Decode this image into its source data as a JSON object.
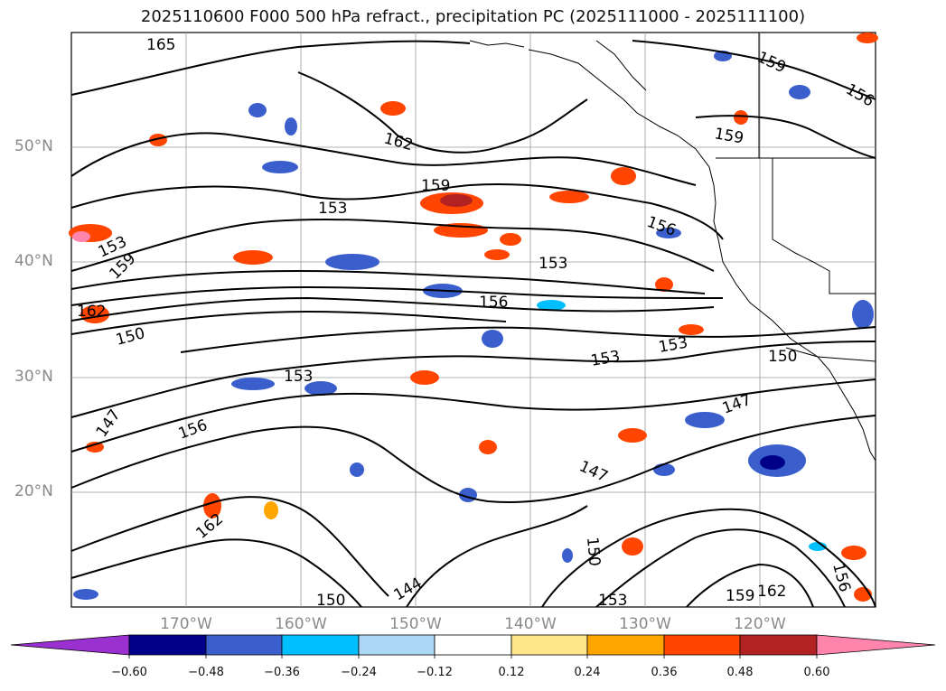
{
  "title": "2025110600 F000 500 hPa refract., precipitation PC (2025111000 - 2025111100)",
  "latitude_labels": [
    "50°N",
    "40°N",
    "30°N",
    "20°N"
  ],
  "longitude_labels": [
    "170°W",
    "160°W",
    "150°W",
    "140°W",
    "130°W",
    "120°W"
  ],
  "contour_labels": [
    "165",
    "162",
    "159",
    "159",
    "156",
    "153",
    "153",
    "159",
    "162",
    "150",
    "153",
    "147",
    "156",
    "159",
    "153",
    "156",
    "150",
    "147",
    "147",
    "153",
    "153",
    "156",
    "162",
    "150",
    "159",
    "162",
    "156",
    "144",
    "150",
    "153"
  ],
  "colorbar": {
    "ticks": [
      "−0.60",
      "−0.48",
      "−0.36",
      "−0.24",
      "−0.12",
      "0.12",
      "0.24",
      "0.36",
      "0.48",
      "0.60"
    ],
    "colors": [
      "#9b30d0",
      "#00008b",
      "#3a5fcd",
      "#00bfff",
      "#add8f5",
      "#ffffff",
      "#ffe68a",
      "#ffa500",
      "#ff4500",
      "#b22222",
      "#ff85ad"
    ]
  }
}
